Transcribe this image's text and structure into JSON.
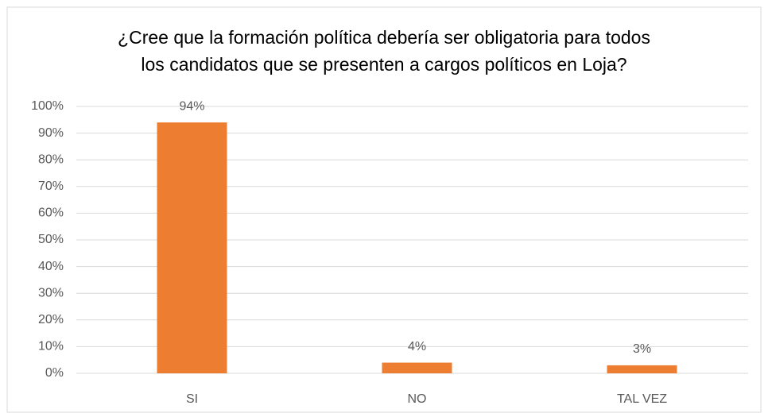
{
  "chart_data": {
    "type": "bar",
    "title": [
      "¿Cree que la formación política debería ser obligatoria para todos",
      "los candidatos que se presenten a cargos políticos en Loja?"
    ],
    "categories": [
      "SI",
      "NO",
      "TAL VEZ"
    ],
    "values": [
      94,
      4,
      3
    ],
    "value_labels": [
      "94%",
      "4%",
      "3%"
    ],
    "color": "#ed7d31",
    "ylim": [
      0,
      100
    ],
    "yticks": [
      {
        "value": 0,
        "label": "0%"
      },
      {
        "value": 10,
        "label": "10%"
      },
      {
        "value": 20,
        "label": "20%"
      },
      {
        "value": 30,
        "label": "30%"
      },
      {
        "value": 40,
        "label": "40%"
      },
      {
        "value": 50,
        "label": "50%"
      },
      {
        "value": 60,
        "label": "60%"
      },
      {
        "value": 70,
        "label": "70%"
      },
      {
        "value": 80,
        "label": "80%"
      },
      {
        "value": 90,
        "label": "90%"
      },
      {
        "value": 100,
        "label": "100%"
      }
    ],
    "grid": true
  }
}
